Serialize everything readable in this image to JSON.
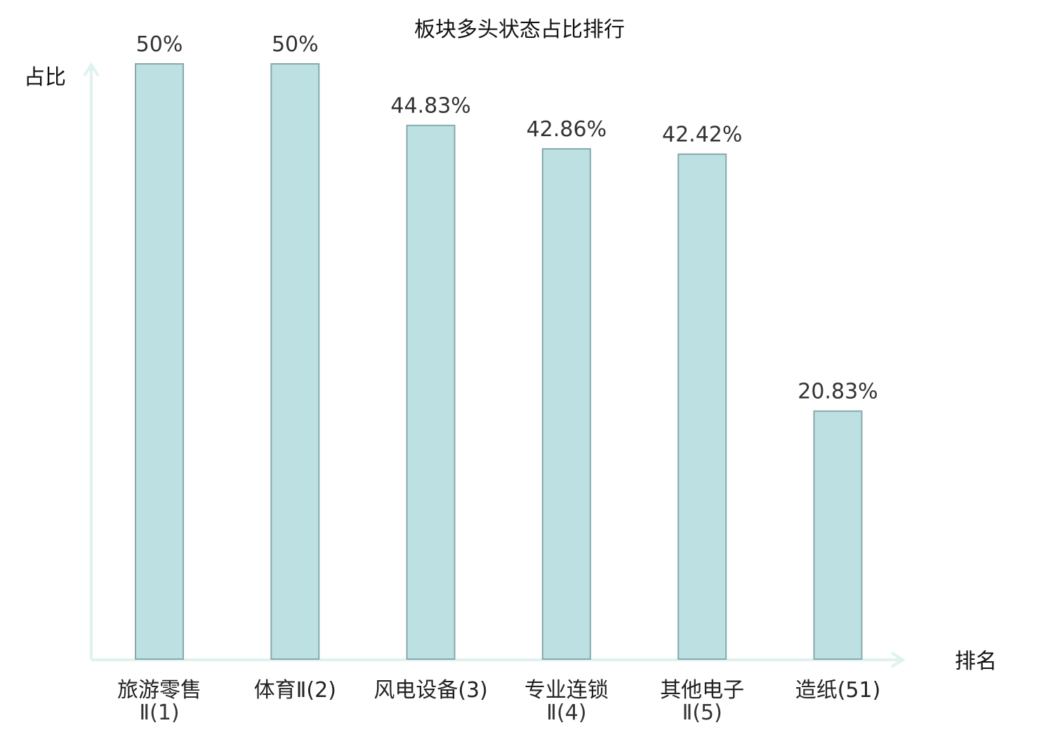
{
  "chart_data": {
    "type": "bar",
    "title": "板块多头状态占比排行",
    "ylabel": "占比",
    "xlabel": "排名",
    "ylim": [
      0,
      50
    ],
    "grid": false,
    "categories": [
      {
        "line1": "旅游零售",
        "line2": "Ⅱ(1)"
      },
      {
        "line1": "体育Ⅱ(2)",
        "line2": ""
      },
      {
        "line1": "风电设备(3)",
        "line2": ""
      },
      {
        "line1": "专业连锁",
        "line2": "Ⅱ(4)"
      },
      {
        "line1": "其他电子",
        "line2": "Ⅱ(5)"
      },
      {
        "line1": "造纸(51)",
        "line2": ""
      }
    ],
    "values": [
      50,
      50,
      44.83,
      42.86,
      42.42,
      20.83
    ],
    "value_labels": [
      "50%",
      "50%",
      "44.83%",
      "42.86%",
      "42.42%",
      "20.83%"
    ],
    "highlight_index": 5,
    "colors": {
      "bar_fill": "#bde0e3",
      "bar_stroke": "#86a9ab",
      "axis": "#dff2ef",
      "highlight_label": "#dd1111"
    }
  }
}
